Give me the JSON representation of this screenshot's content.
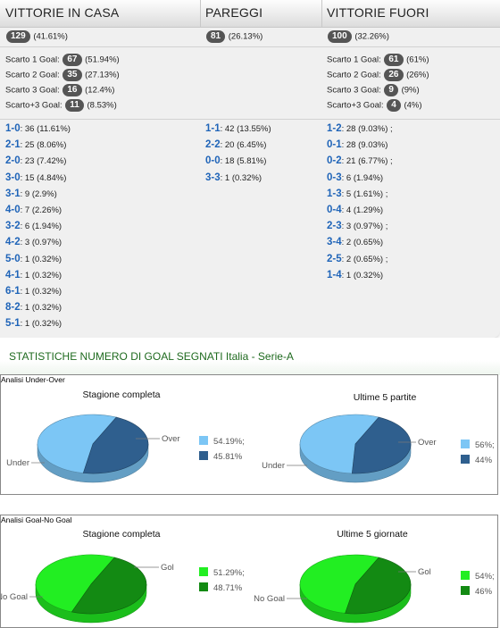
{
  "header": {
    "col1": "VITTORIE IN CASA",
    "col2": "PAREGGI",
    "col3": "VITTORIE FUORI"
  },
  "totals": {
    "home": {
      "count": "129",
      "pct": "(41.61%)"
    },
    "draw": {
      "count": "81",
      "pct": "(26.13%)"
    },
    "away": {
      "count": "100",
      "pct": "(32.26%)"
    }
  },
  "margins": {
    "home": [
      {
        "label": "Scarto 1 Goal:",
        "count": "67",
        "pct": "(51.94%)"
      },
      {
        "label": "Scarto 2 Goal:",
        "count": "35",
        "pct": "(27.13%)"
      },
      {
        "label": "Scarto 3 Goal:",
        "count": "16",
        "pct": "(12.4%)"
      },
      {
        "label": "Scarto+3 Goal:",
        "count": "11",
        "pct": "(8.53%)"
      }
    ],
    "away": [
      {
        "label": "Scarto 1 Goal:",
        "count": "61",
        "pct": "(61%)"
      },
      {
        "label": "Scarto 2 Goal:",
        "count": "26",
        "pct": "(26%)"
      },
      {
        "label": "Scarto 3 Goal:",
        "count": "9",
        "pct": "(9%)"
      },
      {
        "label": "Scarto+3 Goal:",
        "count": "4",
        "pct": "(4%)"
      }
    ]
  },
  "scores": {
    "home": [
      {
        "score": "1-0",
        "rest": ": 36 (11.61%)"
      },
      {
        "score": "2-1",
        "rest": ": 25 (8.06%)"
      },
      {
        "score": "2-0",
        "rest": ": 23 (7.42%)"
      },
      {
        "score": "3-0",
        "rest": ": 15 (4.84%)"
      },
      {
        "score": "3-1",
        "rest": ": 9 (2.9%)"
      },
      {
        "score": "4-0",
        "rest": ": 7 (2.26%)"
      },
      {
        "score": "3-2",
        "rest": ": 6 (1.94%)"
      },
      {
        "score": "4-2",
        "rest": ": 3 (0.97%)"
      },
      {
        "score": "5-0",
        "rest": ": 1 (0.32%)"
      },
      {
        "score": "4-1",
        "rest": ": 1 (0.32%)"
      },
      {
        "score": "6-1",
        "rest": ": 1 (0.32%)"
      },
      {
        "score": "8-2",
        "rest": ": 1 (0.32%)"
      },
      {
        "score": "5-1",
        "rest": ": 1 (0.32%)"
      }
    ],
    "draw": [
      {
        "score": "1-1",
        "rest": ": 42 (13.55%)"
      },
      {
        "score": "2-2",
        "rest": ": 20 (6.45%)"
      },
      {
        "score": "0-0",
        "rest": ": 18 (5.81%)"
      },
      {
        "score": "3-3",
        "rest": ": 1 (0.32%)"
      }
    ],
    "away": [
      {
        "score": "1-2",
        "rest": ": 28 (9.03%) ;"
      },
      {
        "score": "0-1",
        "rest": ": 28 (9.03%)"
      },
      {
        "score": "0-2",
        "rest": ": 21 (6.77%) ;"
      },
      {
        "score": "0-3",
        "rest": ": 6 (1.94%)"
      },
      {
        "score": "1-3",
        "rest": ": 5 (1.61%) ;"
      },
      {
        "score": "0-4",
        "rest": ": 4 (1.29%)"
      },
      {
        "score": "2-3",
        "rest": ": 3 (0.97%) ;"
      },
      {
        "score": "3-4",
        "rest": ": 2 (0.65%)"
      },
      {
        "score": "2-5",
        "rest": ": 2 (0.65%) ;"
      },
      {
        "score": "1-4",
        "rest": ": 1 (0.32%)"
      }
    ]
  },
  "section_title": "STATISTICHE NUMERO DI GOAL SEGNATI Italia - Serie-A",
  "colors": {
    "under_over_a": "#7cc6f5",
    "under_over_b": "#2f5f8e",
    "gol_a": "#22ee22",
    "gol_b": "#138a13"
  },
  "chart_data": [
    {
      "type": "pie",
      "panel": "Analisi Under-Over",
      "title": "Stagione completa",
      "categories": [
        "Under",
        "Over"
      ],
      "values": [
        54.19,
        45.81
      ],
      "legend": [
        "54.19%;",
        "45.81%"
      ]
    },
    {
      "type": "pie",
      "panel": "Analisi Under-Over",
      "title": "Ultime 5 partite",
      "categories": [
        "Under",
        "Over"
      ],
      "values": [
        56,
        44
      ],
      "legend": [
        "56%;",
        "44%"
      ]
    },
    {
      "type": "pie",
      "panel": "Analisi Goal-No Goal",
      "title": "Stagione completa",
      "categories": [
        "No Goal",
        "Gol"
      ],
      "values": [
        51.29,
        48.71
      ],
      "legend": [
        "51.29%;",
        "48.71%"
      ]
    },
    {
      "type": "pie",
      "panel": "Analisi Goal-No Goal",
      "title": "Ultime 5 giornate",
      "categories": [
        "No Goal",
        "Gol"
      ],
      "values": [
        54,
        46
      ],
      "legend": [
        "54%;",
        "46%"
      ]
    }
  ]
}
